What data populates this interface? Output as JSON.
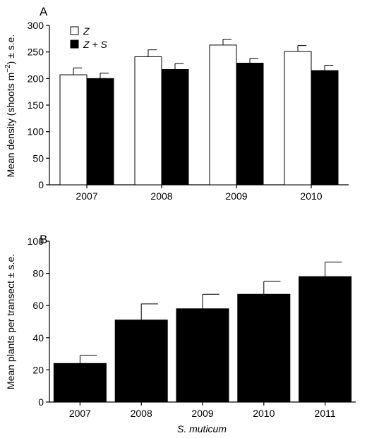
{
  "chart_data": [
    {
      "panel": "A",
      "type": "bar",
      "ylabel_prefix": "Mean density (shoots m",
      "ylabel_sup": "−2",
      "ylabel_suffix": ") ± s.e.",
      "xlabel": "",
      "ylim": [
        0,
        300
      ],
      "yticks": [
        "0",
        "50",
        "100",
        "150",
        "200",
        "250",
        "300"
      ],
      "categories": [
        "2007",
        "2008",
        "2009",
        "2010"
      ],
      "series": [
        {
          "name": "Z",
          "color": "#ffffff",
          "values": [
            207,
            241,
            263,
            251
          ],
          "errors": [
            13,
            13,
            11,
            11
          ]
        },
        {
          "name": "Z + S",
          "color": "#000000",
          "values": [
            200,
            217,
            229,
            215
          ],
          "errors": [
            10,
            11,
            9,
            10
          ]
        }
      ],
      "legend": {
        "position": "top-left"
      }
    },
    {
      "panel": "B",
      "type": "bar",
      "ylabel": "Mean plants per transect ± s.e.",
      "xlabel": "S. muticum",
      "ylim": [
        0,
        100
      ],
      "yticks": [
        "0",
        "20",
        "40",
        "60",
        "80",
        "100"
      ],
      "categories": [
        "2007",
        "2008",
        "2009",
        "2010",
        "2011"
      ],
      "series": [
        {
          "color": "#000000",
          "values": [
            24,
            51,
            58,
            67,
            78
          ],
          "errors": [
            5,
            10,
            9,
            8,
            9
          ]
        }
      ]
    }
  ]
}
